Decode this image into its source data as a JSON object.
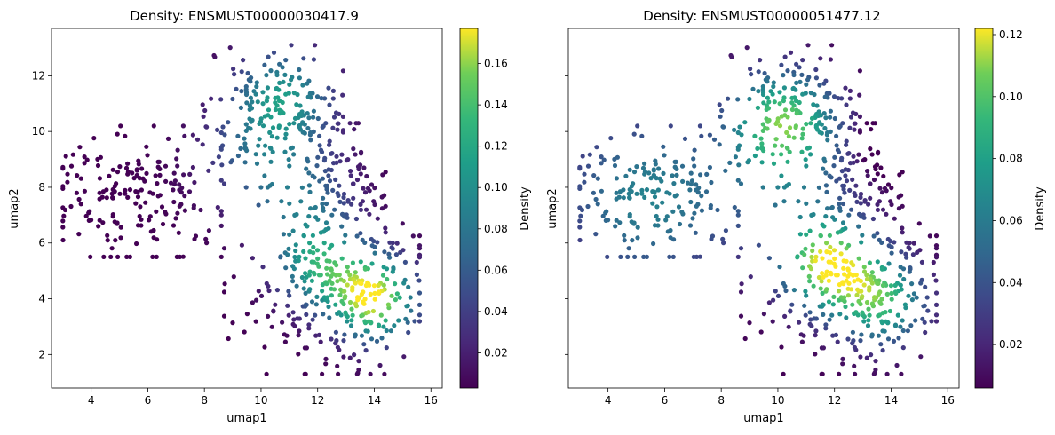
{
  "chart_data": [
    {
      "type": "scatter",
      "title": "Density: ENSMUST00000030417.9",
      "xlabel": "umap1",
      "ylabel": "umap2",
      "colorbar_label": "Density",
      "colormap": "viridis",
      "xlim": [
        2.6,
        16.4
      ],
      "ylim": [
        0.8,
        13.7
      ],
      "xticks": [
        4,
        6,
        8,
        10,
        12,
        14,
        16
      ],
      "yticks": [
        2,
        4,
        6,
        8,
        10,
        12
      ],
      "clim": [
        0.003,
        0.177
      ],
      "cticks": [
        0.02,
        0.04,
        0.06,
        0.08,
        0.1,
        0.12,
        0.14,
        0.16
      ],
      "cticklabels": [
        "0.02",
        "0.04",
        "0.06",
        "0.08",
        "0.10",
        "0.12",
        "0.14",
        "0.16"
      ],
      "grid": false,
      "clusters": [
        {
          "region": "left lobe",
          "x_range": [
            3.0,
            8.6
          ],
          "y_range": [
            5.5,
            10.2
          ],
          "density": [
            0.003,
            0.03
          ]
        },
        {
          "region": "top lobe",
          "x_range": [
            7.6,
            12.9
          ],
          "y_range": [
            8.0,
            13.1
          ],
          "density": [
            0.03,
            0.12
          ]
        },
        {
          "region": "right arm",
          "x_range": [
            11.0,
            14.4
          ],
          "y_range": [
            6.0,
            10.3
          ],
          "density": [
            0.02,
            0.08
          ]
        },
        {
          "region": "bottom lobe",
          "x_range": [
            8.7,
            15.6
          ],
          "y_range": [
            1.3,
            7.5
          ],
          "density": [
            0.06,
            0.177
          ]
        }
      ],
      "peak": {
        "x": 14.0,
        "y": 4.0,
        "density": 0.177
      }
    },
    {
      "type": "scatter",
      "title": "Density: ENSMUST00000051477.12",
      "xlabel": "umap1",
      "ylabel": "umap2",
      "colorbar_label": "Density",
      "colormap": "viridis",
      "xlim": [
        2.6,
        16.4
      ],
      "ylim": [
        0.8,
        13.7
      ],
      "xticks": [
        4,
        6,
        8,
        10,
        12,
        14,
        16
      ],
      "yticks": [
        2,
        4,
        6,
        8,
        10,
        12
      ],
      "clim": [
        0.006,
        0.122
      ],
      "cticks": [
        0.02,
        0.04,
        0.06,
        0.08,
        0.1,
        0.12
      ],
      "cticklabels": [
        "0.02",
        "0.04",
        "0.06",
        "0.08",
        "0.10",
        "0.12"
      ],
      "grid": false,
      "clusters": [
        {
          "region": "left lobe",
          "x_range": [
            3.0,
            8.6
          ],
          "y_range": [
            5.5,
            10.2
          ],
          "density": [
            0.05,
            0.08
          ]
        },
        {
          "region": "top lobe",
          "x_range": [
            7.6,
            12.9
          ],
          "y_range": [
            8.0,
            13.1
          ],
          "density": [
            0.06,
            0.11
          ]
        },
        {
          "region": "right arm",
          "x_range": [
            11.0,
            14.4
          ],
          "y_range": [
            6.0,
            10.3
          ],
          "density": [
            0.006,
            0.07
          ]
        },
        {
          "region": "bottom lobe",
          "x_range": [
            8.7,
            15.6
          ],
          "y_range": [
            1.3,
            7.5
          ],
          "density": [
            0.06,
            0.122
          ]
        }
      ],
      "peak": {
        "x": 11.8,
        "y": 5.2,
        "density": 0.122
      }
    }
  ]
}
